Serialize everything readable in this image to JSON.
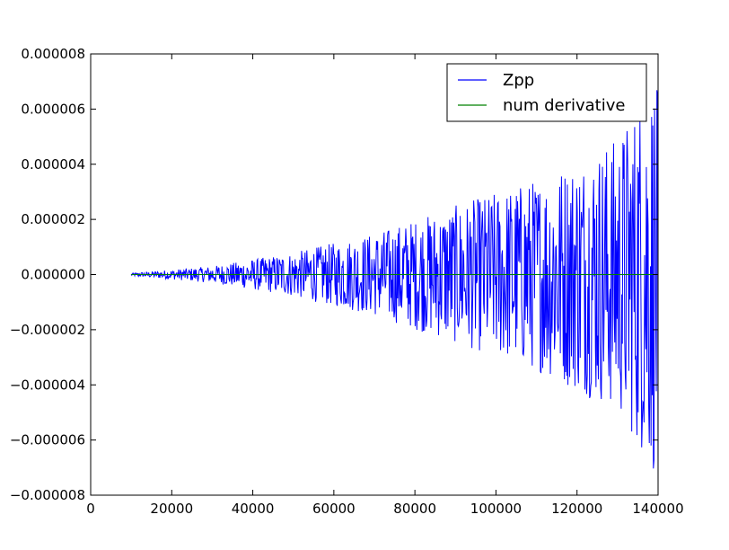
{
  "chart_data": {
    "type": "line",
    "title": "",
    "xlabel": "",
    "ylabel": "",
    "xlim": [
      0,
      140000
    ],
    "ylim": [
      -8e-06,
      8e-06
    ],
    "xticks": [
      0,
      20000,
      40000,
      60000,
      80000,
      100000,
      120000,
      140000
    ],
    "xtick_labels": [
      "0",
      "20000",
      "40000",
      "60000",
      "80000",
      "100000",
      "120000",
      "140000"
    ],
    "yticks": [
      8e-06,
      6e-06,
      4e-06,
      2e-06,
      0.0,
      -2e-06,
      -4e-06,
      -6e-06,
      -8e-06
    ],
    "ytick_labels": [
      "0.000008",
      "0.000006",
      "0.000004",
      "0.000002",
      "0.000000",
      "−0.000002",
      "−0.000004",
      "−0.000006",
      "−0.000008"
    ],
    "grid": false,
    "legend_position": "top-right",
    "series": [
      {
        "name": "Zpp",
        "color": "#0000ff",
        "x_range": [
          10000,
          140000
        ],
        "description": "noisy oscillation around zero with amplitude growing with x",
        "envelope": [
          [
            10000,
            5e-08
          ],
          [
            30000,
            3e-07
          ],
          [
            50000,
            8e-07
          ],
          [
            70000,
            1.5e-06
          ],
          [
            90000,
            2.5e-06
          ],
          [
            110000,
            3.5e-06
          ],
          [
            130000,
            5e-06
          ],
          [
            140000,
            7.5e-06
          ]
        ]
      },
      {
        "name": "num derivative",
        "color": "#008000",
        "x": [
          10000,
          140000
        ],
        "y": [
          0.0,
          0.0
        ]
      }
    ]
  }
}
